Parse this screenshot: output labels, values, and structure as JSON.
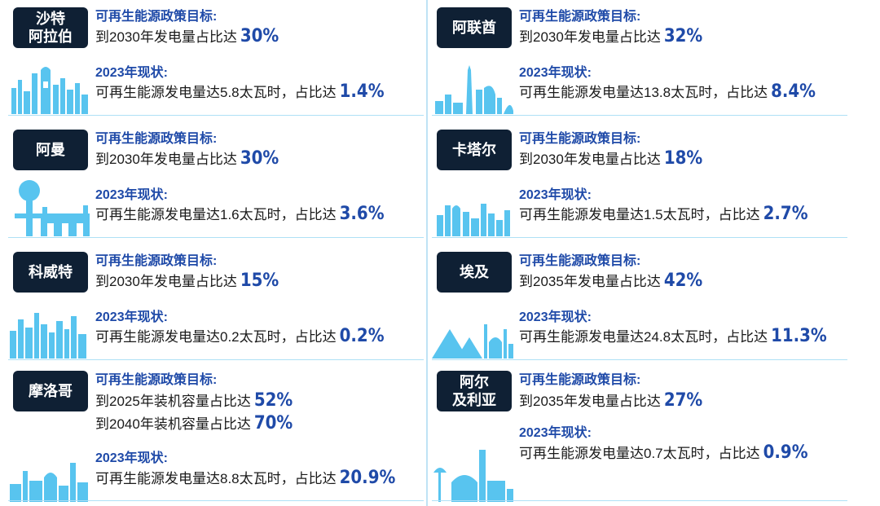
{
  "colors": {
    "badge_bg": "#0f2034",
    "accent": "#1f4aa8",
    "skyline": "#58c4ef",
    "rule": "#aee0f5"
  },
  "countries": [
    {
      "name": "沙特\n阿拉伯",
      "goal_heading": "可再生能源政策目标:",
      "goal_lines": [
        {
          "text": "到2030年发电量占比达",
          "value": "30%"
        }
      ],
      "status_heading": "2023年现状:",
      "status_text": "可再生能源发电量达5.8太瓦时，占比达",
      "status_value": "1.4%"
    },
    {
      "name": "阿曼",
      "goal_heading": "可再生能源政策目标:",
      "goal_lines": [
        {
          "text": "到2030年发电量占比达",
          "value": "30%"
        }
      ],
      "status_heading": "2023年现状:",
      "status_text": "可再生能源发电量达1.6太瓦时，占比达",
      "status_value": "3.6%"
    },
    {
      "name": "科威特",
      "goal_heading": "可再生能源政策目标:",
      "goal_lines": [
        {
          "text": "到2030年发电量占比达",
          "value": "15%"
        }
      ],
      "status_heading": "2023年现状:",
      "status_text": "可再生能源发电量达0.2太瓦时，占比达",
      "status_value": "0.2%"
    },
    {
      "name": "摩洛哥",
      "goal_heading": "可再生能源政策目标:",
      "goal_lines": [
        {
          "text": "到2025年装机容量占比达",
          "value": "52%"
        },
        {
          "text": "到2040年装机容量占比达",
          "value": "70%"
        }
      ],
      "status_heading": "2023年现状:",
      "status_text": "可再生能源发电量达8.8太瓦时，占比达",
      "status_value": "20.9%"
    },
    {
      "name": "阿联酋",
      "goal_heading": "可再生能源政策目标:",
      "goal_lines": [
        {
          "text": "到2030年发电量占比达",
          "value": "32%"
        }
      ],
      "status_heading": "2023年现状:",
      "status_text": "可再生能源发电量达13.8太瓦时，占比达",
      "status_value": "8.4%"
    },
    {
      "name": "卡塔尔",
      "goal_heading": "可再生能源政策目标:",
      "goal_lines": [
        {
          "text": "到2030年发电量占比达",
          "value": "18%"
        }
      ],
      "status_heading": "2023年现状:",
      "status_text": "可再生能源发电量达1.5太瓦时，占比达",
      "status_value": "2.7%"
    },
    {
      "name": "埃及",
      "goal_heading": "可再生能源政策目标:",
      "goal_lines": [
        {
          "text": "到2035年发电量占比达",
          "value": "42%"
        }
      ],
      "status_heading": "2023年现状:",
      "status_text": "可再生能源发电量达24.8太瓦时，占比达",
      "status_value": "11.3%"
    },
    {
      "name": "阿尔\n及利亚",
      "goal_heading": "可再生能源政策目标:",
      "goal_lines": [
        {
          "text": "到2035年发电量占比达",
          "value": "27%"
        }
      ],
      "status_heading": "2023年现状:",
      "status_text": "可再生能源发电量达0.7太瓦时，占比达",
      "status_value": "0.9%"
    }
  ]
}
